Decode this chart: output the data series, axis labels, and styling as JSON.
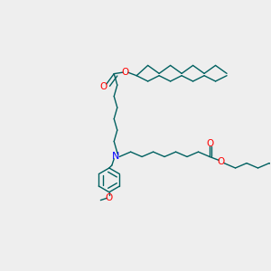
{
  "background_color": "#eeeeee",
  "bond_color": "#006060",
  "oxygen_color": "#ff0000",
  "nitrogen_color": "#0000ff",
  "figsize": [
    3.0,
    3.0
  ],
  "dpi": 100,
  "xlim": [
    0,
    10
  ],
  "ylim": [
    0,
    10
  ]
}
